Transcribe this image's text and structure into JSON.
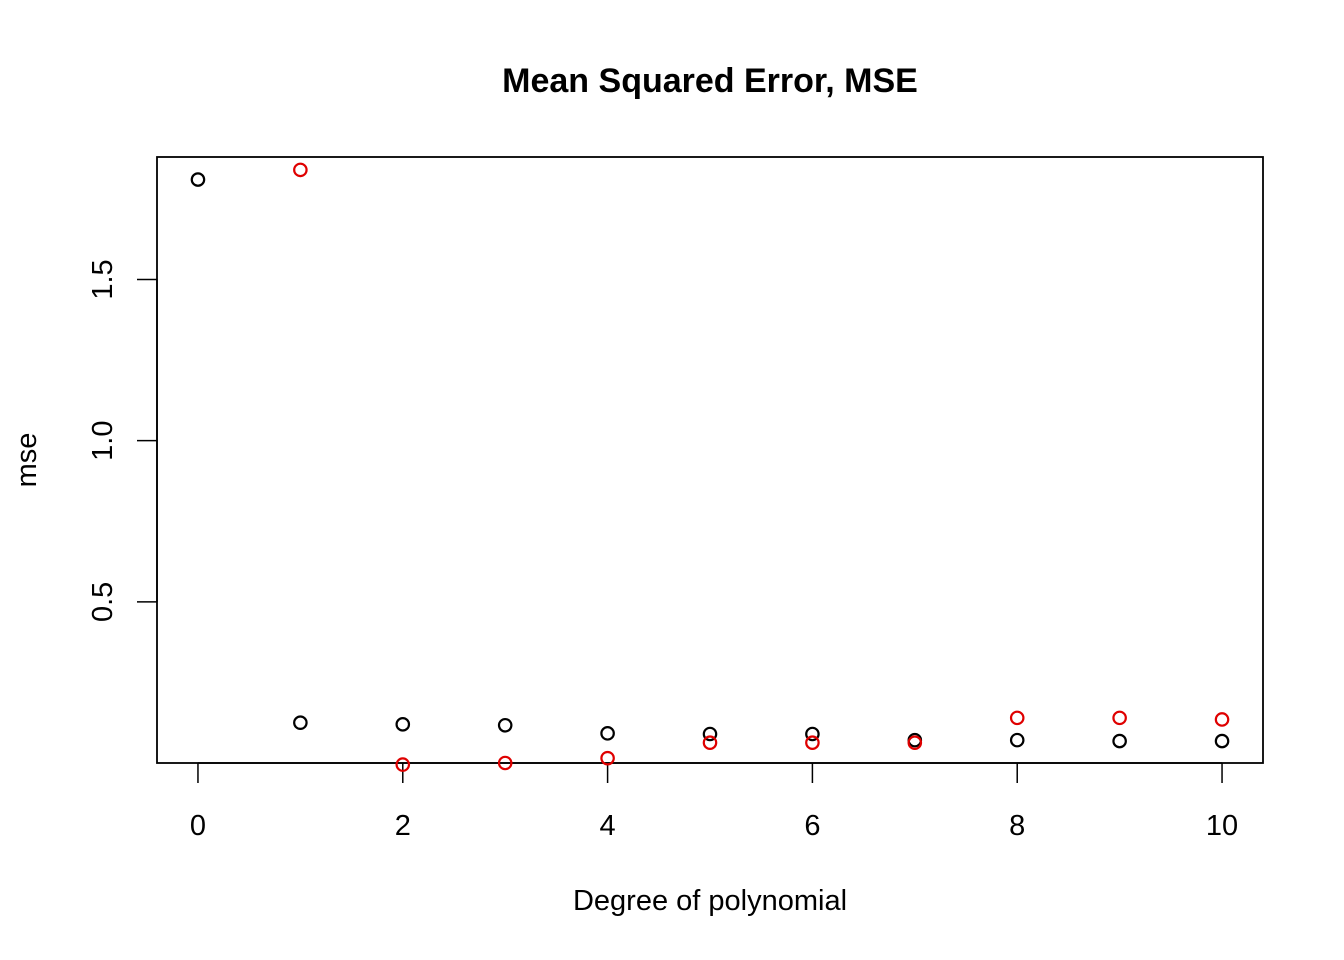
{
  "chart_data": {
    "type": "scatter",
    "title": "Mean Squared Error, MSE",
    "xlabel": "Degree of polynomial",
    "ylabel": "mse",
    "xlim": [
      -0.4,
      10.4
    ],
    "ylim": [
      0.0,
      1.88
    ],
    "x_ticks": [
      0,
      2,
      4,
      6,
      8,
      10
    ],
    "x_tick_labels": [
      "0",
      "2",
      "4",
      "6",
      "8",
      "10"
    ],
    "y_ticks": [
      0.5,
      1.0,
      1.5
    ],
    "y_tick_labels": [
      "0.5",
      "1.0",
      "1.5"
    ],
    "grid": false,
    "legend": false,
    "series": [
      {
        "color": "#000000",
        "marker": "open-circle",
        "points": [
          {
            "x": 0,
            "y": 1.81
          },
          {
            "x": 1,
            "y": 0.125
          },
          {
            "x": 2,
            "y": 0.12
          },
          {
            "x": 3,
            "y": 0.117
          },
          {
            "x": 4,
            "y": 0.092
          },
          {
            "x": 5,
            "y": 0.09
          },
          {
            "x": 6,
            "y": 0.09
          },
          {
            "x": 7,
            "y": 0.071
          },
          {
            "x": 8,
            "y": 0.071
          },
          {
            "x": 9,
            "y": 0.068
          },
          {
            "x": 10,
            "y": 0.068
          }
        ]
      },
      {
        "color": "#DF0000",
        "marker": "open-circle",
        "points": [
          {
            "x": 1,
            "y": 1.84
          },
          {
            "x": 2,
            "y": -0.005
          },
          {
            "x": 3,
            "y": 0.0
          },
          {
            "x": 4,
            "y": 0.015
          },
          {
            "x": 5,
            "y": 0.063
          },
          {
            "x": 6,
            "y": 0.063
          },
          {
            "x": 7,
            "y": 0.063
          },
          {
            "x": 8,
            "y": 0.14
          },
          {
            "x": 9,
            "y": 0.14
          },
          {
            "x": 10,
            "y": 0.135
          }
        ]
      }
    ]
  }
}
